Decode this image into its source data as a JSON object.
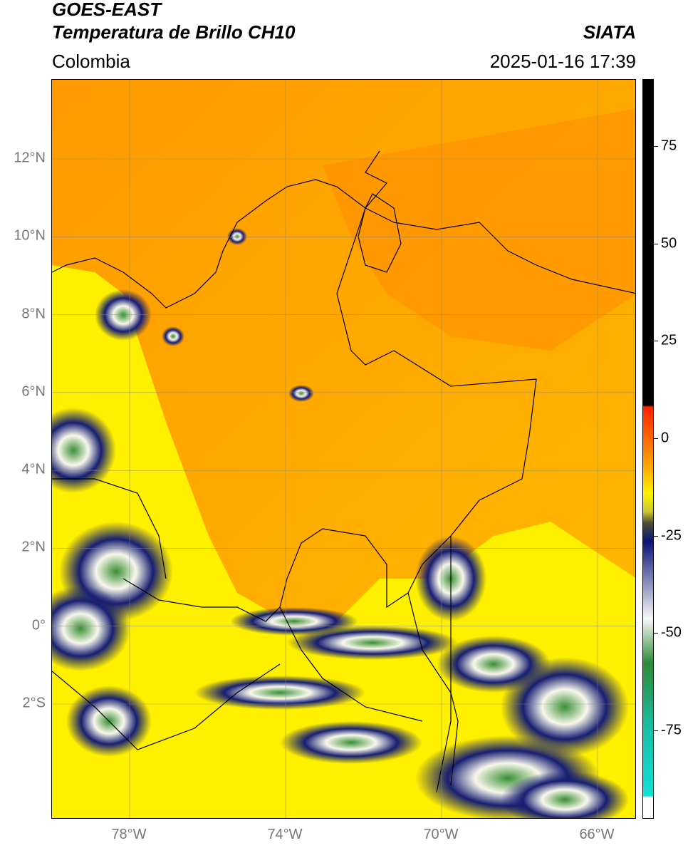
{
  "header": {
    "satellite": "GOES-EAST",
    "product": "Temperatura de Brillo CH10",
    "region": "Colombia",
    "organization": "SIATA",
    "datetime": "2025-01-16 17:39"
  },
  "map": {
    "lat_labels": [
      "12°N",
      "10°N",
      "8°N",
      "6°N",
      "4°N",
      "2°N",
      "0°",
      "2°S"
    ],
    "lon_labels": [
      "78°W",
      "74°W",
      "70°W",
      "66°W"
    ],
    "lat_range": [
      -5,
      14
    ],
    "lon_range": [
      -80,
      -65
    ]
  },
  "colorbar": {
    "ticks": [
      75,
      50,
      25,
      0,
      -25,
      -50,
      -75
    ],
    "tick_labels": [
      "75",
      "50",
      "25",
      "0",
      "-25",
      "-50",
      "-75"
    ],
    "range": [
      -100,
      90
    ],
    "colors": {
      "warm_black": "#000000",
      "red": "#ff2200",
      "orange": "#ff9900",
      "yellow": "#fff000",
      "olive": "#c8c830",
      "navy": "#0a1478",
      "white": "#f8f8f8",
      "green": "#2e8a36",
      "cyan": "#10e0d8"
    }
  }
}
